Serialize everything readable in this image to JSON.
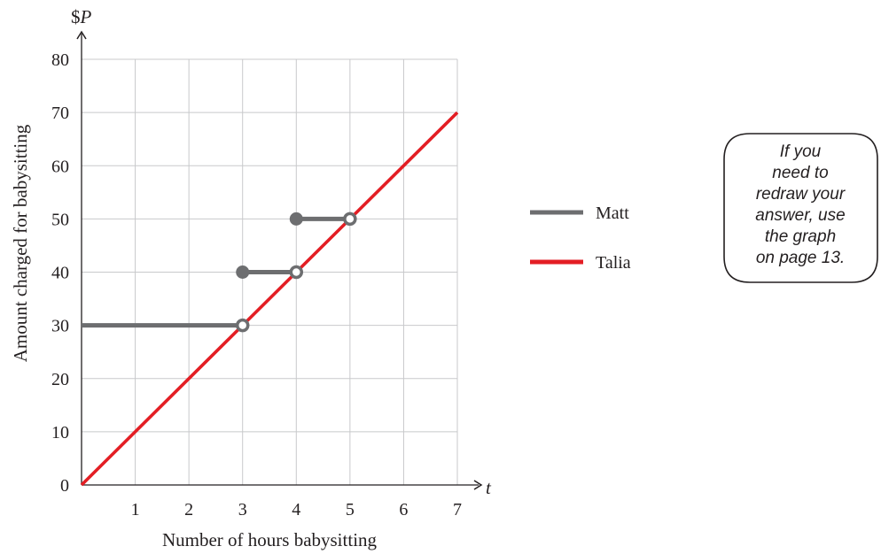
{
  "chart_data": {
    "type": "line",
    "ylabel_symbol": "$P",
    "xlabel_symbol": "t",
    "xlabel": "Number of hours babysitting",
    "ylabel": "Amount charged for babysitting",
    "xlim": [
      0,
      7
    ],
    "ylim": [
      0,
      80
    ],
    "x_ticks": [
      "1",
      "2",
      "3",
      "4",
      "5",
      "6",
      "7"
    ],
    "y_ticks": [
      "0",
      "10",
      "20",
      "30",
      "40",
      "50",
      "60",
      "70",
      "80"
    ],
    "grid": true,
    "legend_position": "right",
    "series": [
      {
        "name": "Matt",
        "color": "#6d6e70",
        "type": "step",
        "segments": [
          {
            "x": [
              0,
              3
            ],
            "y": 30,
            "start_closed": false,
            "end_open": true
          },
          {
            "x": [
              3,
              4
            ],
            "y": 40,
            "start_closed": true,
            "end_open": true
          },
          {
            "x": [
              4,
              5
            ],
            "y": 50,
            "start_closed": true,
            "end_open": true
          }
        ]
      },
      {
        "name": "Talia",
        "color": "#e31e24",
        "type": "line",
        "x": [
          0,
          7
        ],
        "y": [
          0,
          70
        ]
      }
    ]
  },
  "note": {
    "lines": [
      "If you",
      "need to",
      "redraw your",
      "answer, use",
      "the graph",
      "on page 13."
    ]
  }
}
